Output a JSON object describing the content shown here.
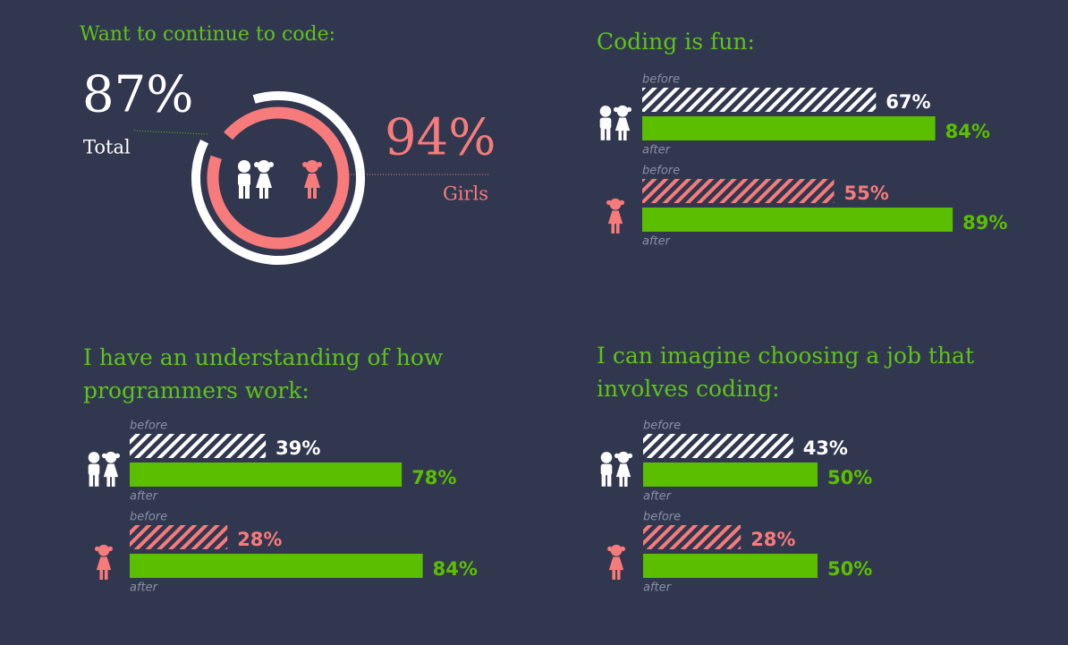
{
  "chart_data": [
    {
      "type": "donut",
      "title": "Want to continue to code:",
      "categories": [
        "Total",
        "Girls"
      ],
      "values": [
        87,
        94
      ],
      "value_labels": [
        "87%",
        "94%"
      ],
      "colors": [
        "#ffffff",
        "#f77b7b"
      ]
    },
    {
      "type": "bar",
      "title": "Coding is fun:",
      "categories": [
        null,
        null
      ],
      "group_colors": [
        "#ffffff",
        "#f77b7b"
      ],
      "xlim": [
        0,
        100
      ],
      "series": [
        {
          "name": "before",
          "hatched": true,
          "values": [
            67,
            55
          ],
          "value_labels": [
            "67%",
            "55%"
          ]
        },
        {
          "name": "after",
          "color": "#5bbf00",
          "values": [
            84,
            89
          ],
          "value_labels": [
            "84%",
            "89%"
          ]
        }
      ]
    },
    {
      "type": "bar",
      "title": "I have an understanding of how programmers work:",
      "categories": [
        null,
        null
      ],
      "group_colors": [
        "#ffffff",
        "#f77b7b"
      ],
      "xlim": [
        0,
        100
      ],
      "series": [
        {
          "name": "before",
          "hatched": true,
          "values": [
            39,
            28
          ],
          "value_labels": [
            "39%",
            "28%"
          ]
        },
        {
          "name": "after",
          "color": "#5bbf00",
          "values": [
            78,
            84
          ],
          "value_labels": [
            "78%",
            "84%"
          ]
        }
      ]
    },
    {
      "type": "bar",
      "title": "I can imagine choosing a job that involves coding:",
      "categories": [
        null,
        null
      ],
      "group_colors": [
        "#ffffff",
        "#f77b7b"
      ],
      "xlim": [
        0,
        100
      ],
      "series": [
        {
          "name": "before",
          "hatched": true,
          "values": [
            43,
            28
          ],
          "value_labels": [
            "43%",
            "28%"
          ]
        },
        {
          "name": "after",
          "color": "#5bbf00",
          "values": [
            50,
            50
          ],
          "value_labels": [
            "50%",
            "50%"
          ]
        }
      ]
    }
  ]
}
